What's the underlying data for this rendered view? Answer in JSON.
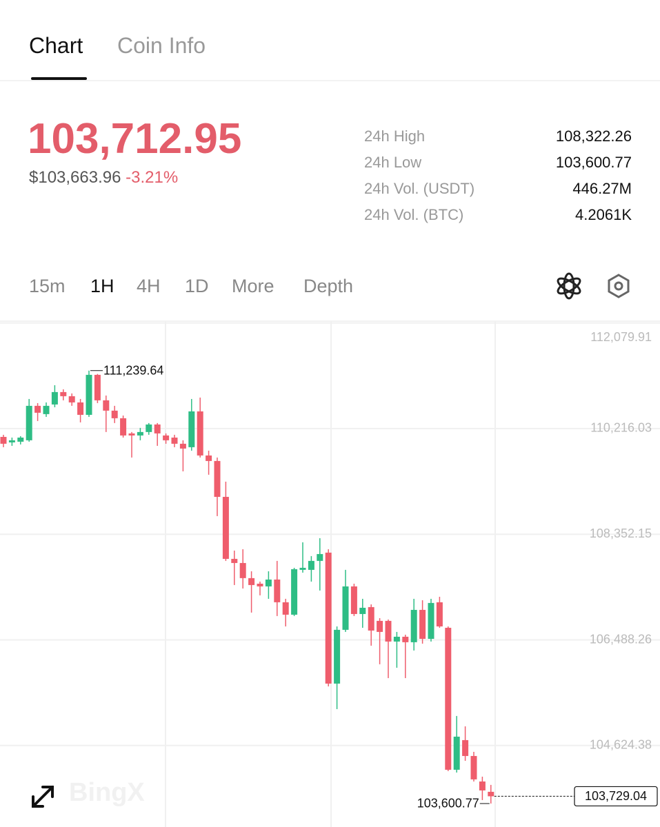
{
  "tabs": [
    "Chart",
    "Coin Info"
  ],
  "price": "103,712.95",
  "price_usd": "$103,663.96",
  "change": "-3.21%",
  "stats": [
    {
      "label": "24h High",
      "value": "108,322.26"
    },
    {
      "label": "24h Low",
      "value": "103,600.77"
    },
    {
      "label": "24h Vol. (USDT)",
      "value": "446.27M"
    },
    {
      "label": "24h Vol. (BTC)",
      "value": "4.2061K"
    }
  ],
  "intervals": [
    "15m",
    "1H",
    "4H",
    "1D",
    "More",
    "Depth"
  ],
  "watermark": "BingX",
  "chart_data": {
    "type": "candlestick",
    "up_color": "#2ebd85",
    "down_color": "#ef5d6c",
    "grid": true,
    "ylim": [
      103187,
      112100
    ],
    "yticks": [
      {
        "value": 112079.91,
        "label": "112,079.91"
      },
      {
        "value": 110216.03,
        "label": "110,216.03"
      },
      {
        "value": 108352.15,
        "label": "108,352.15"
      },
      {
        "value": 106488.26,
        "label": "106,488.26"
      },
      {
        "value": 104624.38,
        "label": "104,624.38"
      }
    ],
    "open": [
      110070,
      109973,
      109985,
      110010,
      110618,
      110472,
      110642,
      110861,
      110788,
      110678,
      110459,
      111165,
      110715,
      110533,
      110399,
      110131,
      110095,
      110156,
      110289,
      110095,
      110058,
      109949,
      109888,
      110520,
      109742,
      109645,
      109012,
      107918,
      107845,
      107578,
      107480,
      107432,
      107553,
      107152,
      106933,
      107724,
      107724,
      107882,
      108028,
      105717,
      106666,
      107432,
      106945,
      107067,
      106824,
      106824,
      106459,
      106544,
      106447,
      107018,
      106507,
      107152,
      106702,
      104197,
      104720,
      104440,
      103990,
      103808
    ],
    "high": [
      110107,
      110058,
      110083,
      110739,
      110666,
      110678,
      110982,
      110909,
      110837,
      110739,
      111239.64,
      111180,
      110800,
      110618,
      110447,
      110156,
      110229,
      110314,
      110314,
      110131,
      110107,
      110010,
      110739,
      110764,
      109827,
      109706,
      109280,
      108064,
      108088,
      107699,
      107517,
      107699,
      107882,
      107213,
      107760,
      108210,
      107967,
      108283,
      108088,
      106726,
      107724,
      107480,
      107213,
      107115,
      106872,
      106848,
      106629,
      106580,
      107213,
      107188,
      107213,
      107249,
      106726,
      105146,
      104963,
      104513,
      104075,
      103930
    ],
    "low": [
      109888,
      109912,
      109937,
      109985,
      110350,
      110423,
      110593,
      110715,
      110618,
      110326,
      110423,
      110666,
      110156,
      110314,
      110058,
      109706,
      110010,
      110107,
      109912,
      109949,
      109888,
      109462,
      109827,
      109706,
      109402,
      108672,
      107882,
      107456,
      107395,
      106970,
      107274,
      107213,
      106909,
      106726,
      106909,
      107675,
      107517,
      107359,
      105668,
      105267,
      106629,
      106909,
      106702,
      106386,
      106058,
      105814,
      105997,
      105814,
      106301,
      106422,
      106459,
      106702,
      104173,
      104148,
      104355,
      103990,
      103662,
      103600.77
    ],
    "close": [
      109949,
      110010,
      110058,
      110618,
      110496,
      110618,
      110861,
      110788,
      110678,
      110459,
      111165,
      110715,
      110533,
      110399,
      110095,
      110095,
      110156,
      110289,
      110131,
      110010,
      109949,
      109864,
      110520,
      109742,
      109645,
      109012,
      107918,
      107845,
      107578,
      107456,
      107432,
      107553,
      107152,
      106933,
      107736,
      107760,
      107882,
      108003,
      105717,
      106666,
      107432,
      106945,
      107055,
      106653,
      106629,
      106459,
      106544,
      106447,
      107018,
      106507,
      107140,
      106726,
      104197,
      104781,
      104440,
      104027,
      103832,
      103729.04
    ],
    "high_label": {
      "value": 111239.64,
      "label": "111,239.64"
    },
    "low_label": {
      "value": 103600.77,
      "label": "103,600.77"
    },
    "last_price": {
      "value": 103729.04,
      "label": "103,729.04"
    }
  }
}
